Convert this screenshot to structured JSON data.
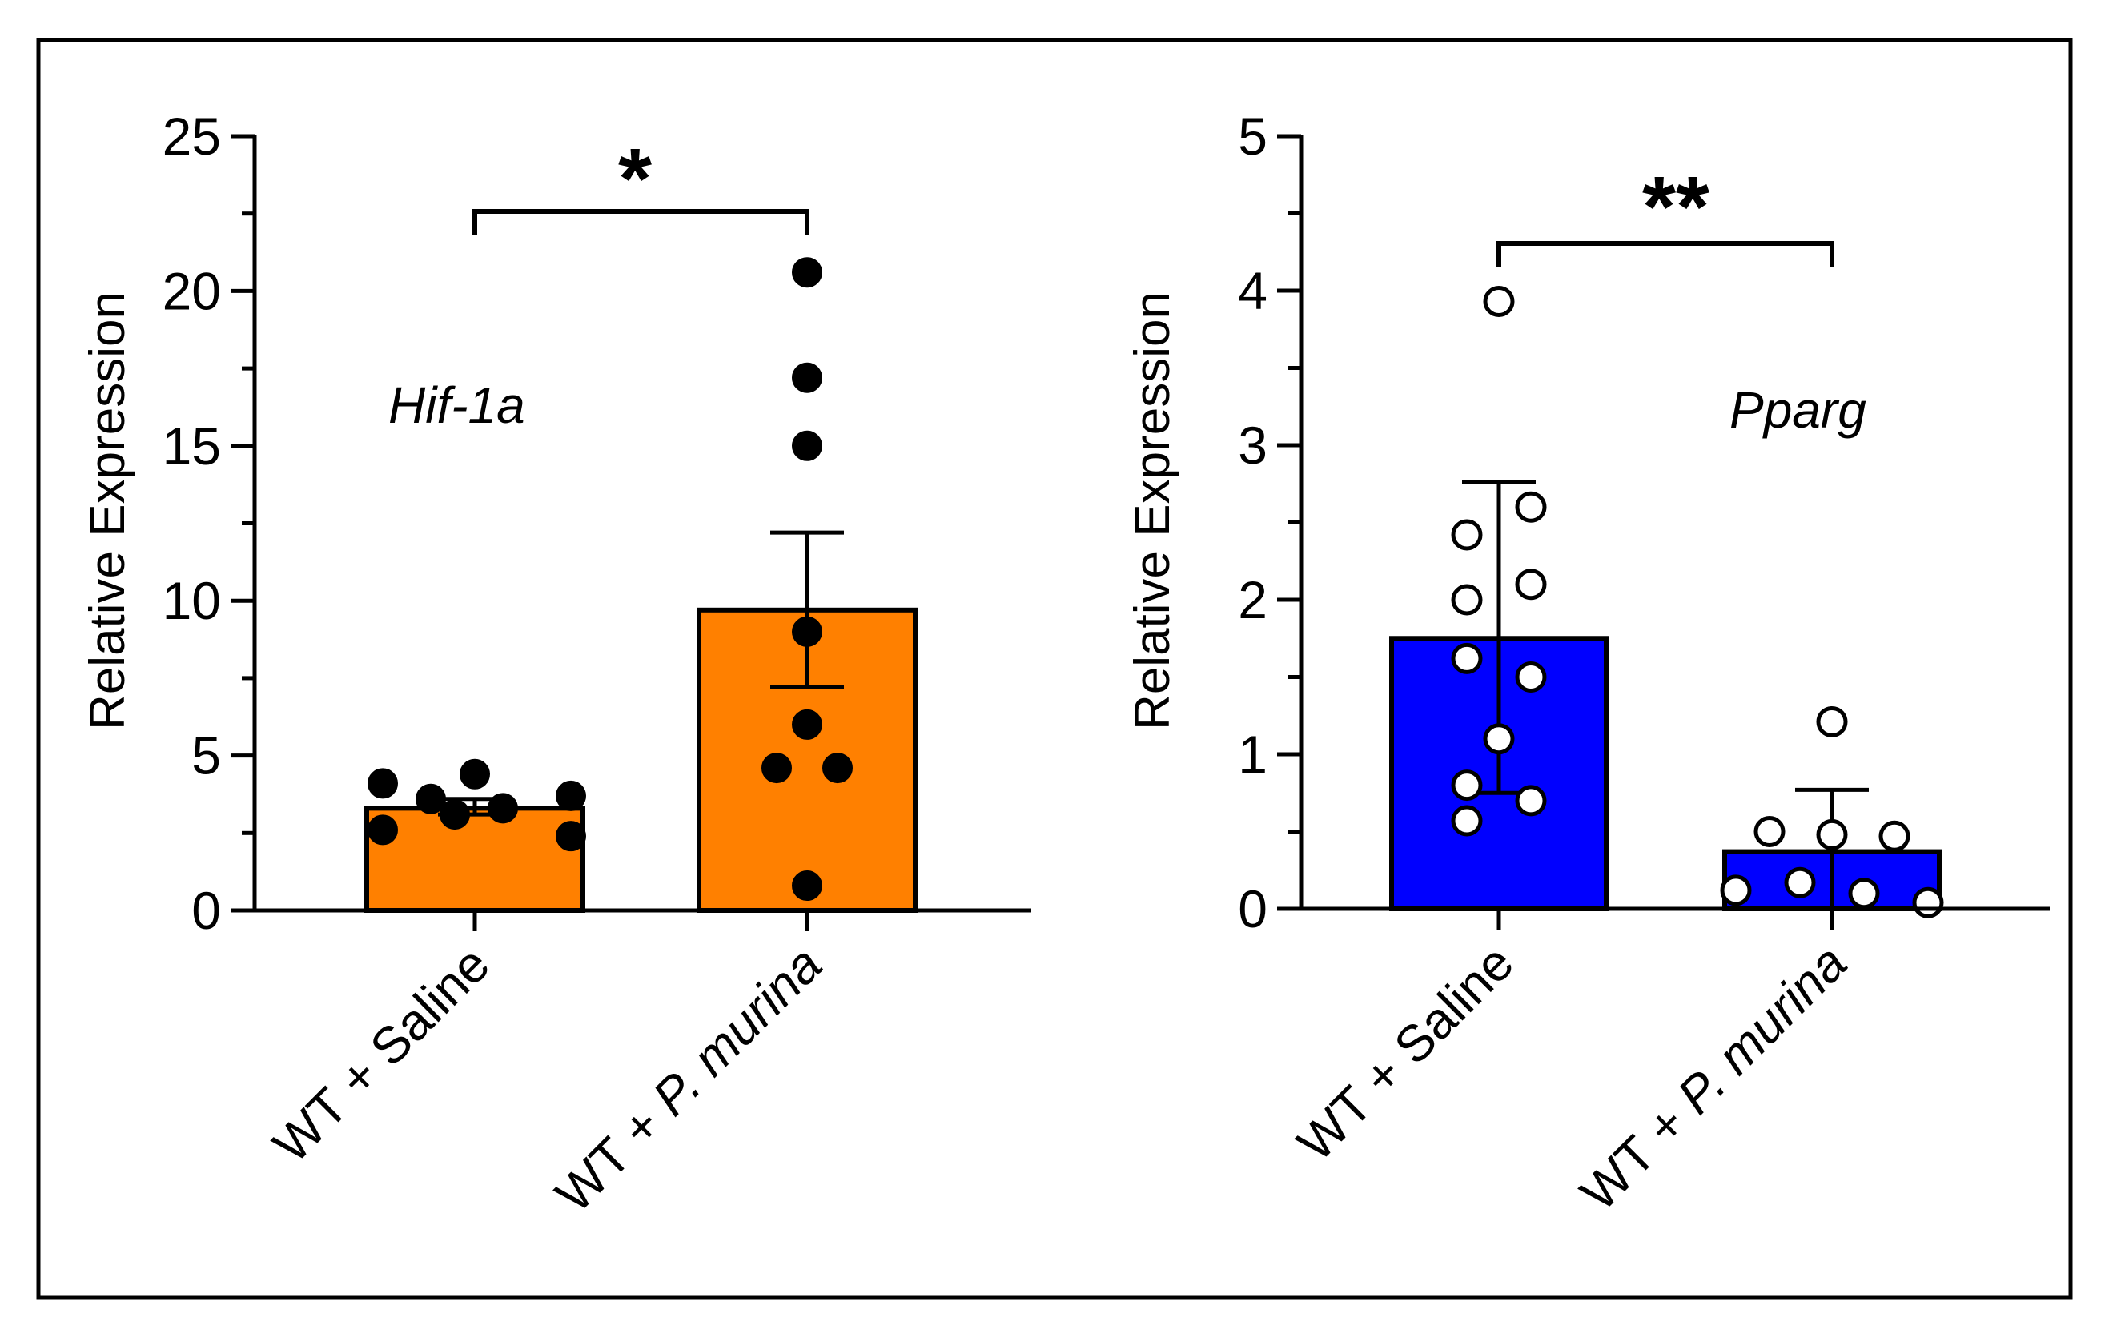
{
  "chart_data": [
    {
      "type": "bar",
      "title": "",
      "annotation": "Hif-1a",
      "ylabel": "Relative Expression",
      "xlabel": "",
      "ylim": [
        0,
        25
      ],
      "yticks": [
        0,
        5,
        10,
        15,
        20,
        25
      ],
      "ytick_labels": [
        "0",
        "5",
        "10",
        "15",
        "20",
        "25"
      ],
      "categories": [
        {
          "prefix": "WT + ",
          "name": "Saline",
          "italic": false
        },
        {
          "prefix": "WT + ",
          "name": "P. murina",
          "italic": true
        }
      ],
      "values": [
        3.3,
        9.7
      ],
      "error": [
        {
          "low": 3.1,
          "high": 3.6
        },
        {
          "low": 7.2,
          "high": 12.2
        }
      ],
      "points": [
        [
          4.1,
          3.6,
          4.4,
          3.7,
          2.6,
          3.1,
          3.3,
          2.4
        ],
        [
          20.6,
          17.2,
          15.0,
          9.0,
          6.0,
          4.6,
          4.6,
          0.8
        ]
      ],
      "point_style": "filled",
      "bar_color": "#ff8000",
      "significance": "*"
    },
    {
      "type": "bar",
      "title": "",
      "annotation": "Pparg",
      "ylabel": "Relative Expression",
      "xlabel": "",
      "ylim": [
        0,
        5
      ],
      "yticks": [
        0,
        1,
        2,
        3,
        4,
        5
      ],
      "ytick_labels": [
        "0",
        "1",
        "2",
        "3",
        "4",
        "5"
      ],
      "categories": [
        {
          "prefix": "WT + ",
          "name": "Saline",
          "italic": false
        },
        {
          "prefix": "WT + ",
          "name": "P. murina",
          "italic": true
        }
      ],
      "values": [
        1.75,
        0.37
      ],
      "error": [
        {
          "low": 0.75,
          "high": 2.76
        },
        {
          "low": 0.0,
          "high": 0.77
        }
      ],
      "points": [
        [
          3.93,
          2.6,
          2.42,
          2.1,
          2.0,
          1.62,
          1.5,
          1.1,
          0.8,
          0.7,
          0.57
        ],
        [
          1.21,
          0.5,
          0.48,
          0.47,
          0.17,
          0.1,
          0.12,
          0.04
        ]
      ],
      "point_style": "open",
      "bar_color": "#0000ff",
      "significance": "**"
    }
  ]
}
